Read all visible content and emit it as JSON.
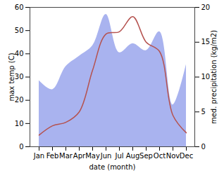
{
  "chart_data": {
    "type": "line",
    "x_label": "date (month)",
    "y_label": "max temp (C)",
    "y2_label": "med. precipitation (kg/m2)",
    "categories": [
      "Jan",
      "Feb",
      "Mar",
      "Apr",
      "May",
      "Jun",
      "Jul",
      "Aug",
      "Sep",
      "Oct",
      "Nov",
      "Dec"
    ],
    "series": [
      {
        "name": "max temp",
        "type": "line",
        "color": "#b5524f",
        "values": [
          5,
          9,
          10.5,
          15,
          33,
          48.5,
          49.5,
          56,
          45,
          41,
          13.5,
          6
        ]
      },
      {
        "name": "med. precipitation",
        "type": "area",
        "axis": "y2",
        "color": "#a9b3ef",
        "values": [
          9.5,
          8.2,
          11.5,
          13,
          14.5,
          19,
          13.5,
          14.8,
          13.8,
          16.5,
          6,
          11.8
        ]
      }
    ],
    "ylim": [
      0,
      60
    ],
    "yticks": [
      0,
      10,
      20,
      30,
      40,
      50,
      60
    ],
    "y2lim": [
      0,
      20
    ],
    "y2ticks": [
      0,
      5,
      10,
      15,
      20
    ],
    "grid": false
  }
}
